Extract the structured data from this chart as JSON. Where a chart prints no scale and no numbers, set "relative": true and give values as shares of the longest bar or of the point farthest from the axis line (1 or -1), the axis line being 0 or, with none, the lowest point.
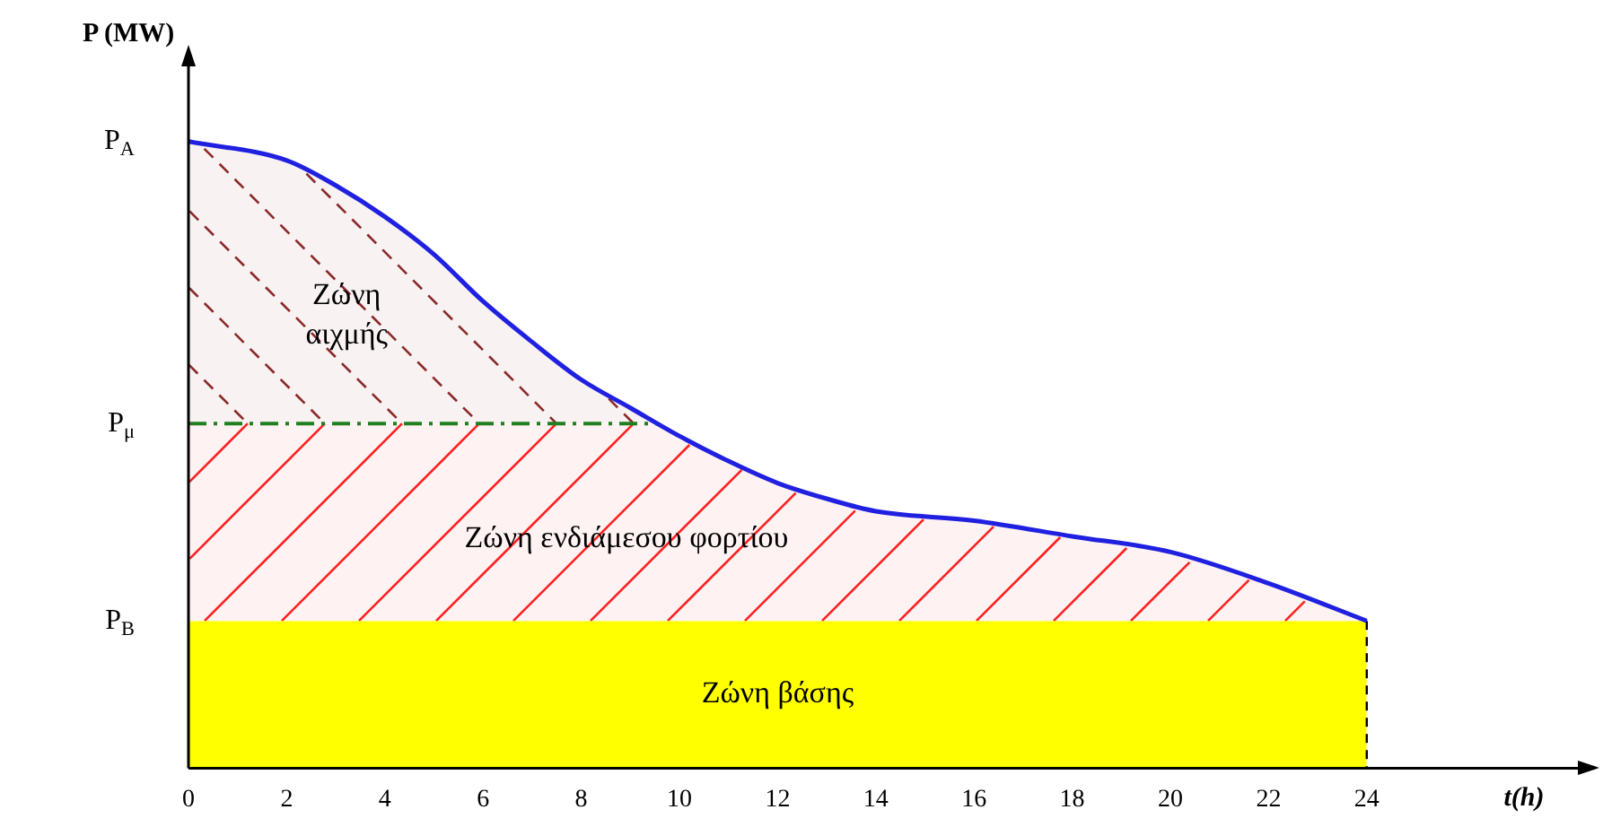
{
  "chart_data": {
    "type": "line",
    "relative": true,
    "xlabel": "t(h)",
    "ylabel": "P (MW)",
    "x": [
      0,
      2,
      3,
      4,
      5,
      6,
      7,
      8,
      9,
      10,
      11,
      12,
      13,
      14,
      16,
      18,
      20,
      22,
      24
    ],
    "series": [
      {
        "color": "#2020e0",
        "values": [
          1.0,
          0.97,
          0.93,
          0.88,
          0.82,
          0.745,
          0.68,
          0.62,
          0.575,
          0.53,
          0.49,
          0.455,
          0.43,
          0.41,
          0.395,
          0.37,
          0.345,
          0.295,
          0.235
        ]
      }
    ],
    "xlim": [
      0,
      28.3
    ],
    "xticks": [
      0,
      2,
      4,
      6,
      8,
      10,
      12,
      14,
      16,
      18,
      20,
      22,
      24
    ],
    "bands": [
      {
        "axis": "y",
        "from": 0,
        "to": 0.235,
        "label": "Ζώνη βάσης",
        "color": "#ffff00"
      },
      {
        "axis": "y",
        "from": 0.55,
        "to": 1.0,
        "label": "Ζώνη αιχμής",
        "color": "#8b2a2a"
      },
      {
        "axis": "y",
        "from": 0.235,
        "to": 0.55,
        "label": "Ζώνη ενδιάμεσου φορτίου",
        "color": "#ff2020"
      }
    ],
    "ref_lines": [
      {
        "axis": "y",
        "value": 0.55,
        "label": "P$_{μ}$",
        "color": "#208020",
        "line_style": "dashdot"
      },
      {
        "axis": "x",
        "value": 24,
        "color": "#000000",
        "line_style": "dashed"
      }
    ],
    "annotations": [
      {
        "text": "P$_{A}$",
        "x": 0,
        "y": 1.0
      },
      {
        "text": "P$_{B}$",
        "x": 0,
        "y": 0.235
      }
    ],
    "grid": false,
    "legend": false,
    "marker": "none",
    "line_style": "solid"
  }
}
